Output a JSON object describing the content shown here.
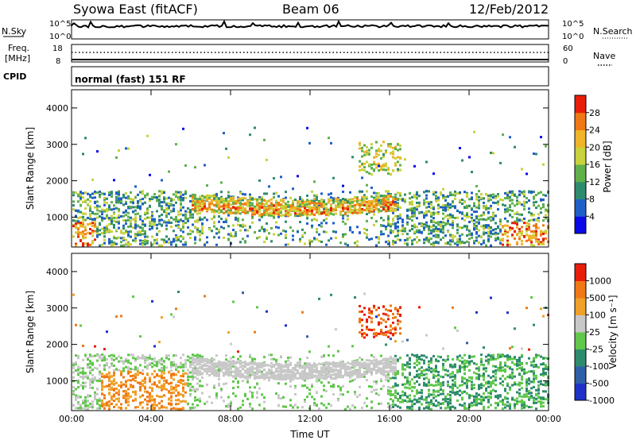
{
  "header": {
    "station": "Syowa East (fitACF)",
    "beam": "Beam 06",
    "date": "12/Feb/2012"
  },
  "top_panels": {
    "nsky_label": "N.Sky",
    "nsearch_label": "N.Search",
    "nsky_ticks": [
      "10^5",
      "10^0"
    ],
    "nsearch_ticks": [
      "10^5",
      "10^0"
    ],
    "freq_label_1": "Freq.",
    "freq_label_2": "[MHz]",
    "freq_ticks": [
      "18",
      "8"
    ],
    "nave_label": "Nave",
    "nave_ticks": [
      "60",
      "0"
    ],
    "cpid_label": "CPID",
    "cpid_text": "normal (fast) 151 RF"
  },
  "chart_data": [
    {
      "type": "heatmap",
      "quantity": "Power",
      "ylabel": "Slant Range [km]",
      "xlabel": "",
      "ylim": [
        180,
        4500
      ],
      "yticks": [
        "1000",
        "2000",
        "3000",
        "4000"
      ],
      "xticks": [
        "00:00",
        "04:00",
        "08:00",
        "12:00",
        "16:00",
        "20:00",
        "00:00"
      ],
      "colorbar_label": "Power [dB]",
      "colorbar_ticks": [
        "28",
        "24",
        "20",
        "16",
        "12",
        "8",
        "4"
      ],
      "colors": [
        "#0a0ae8",
        "#1f5fc8",
        "#2e8b6e",
        "#5fb04a",
        "#c8d23c",
        "#f0b428",
        "#f07814",
        "#e81e0a"
      ]
    },
    {
      "type": "heatmap",
      "quantity": "Velocity",
      "ylabel": "Slant Range [km]",
      "xlabel": "Time UT",
      "ylim": [
        180,
        4500
      ],
      "yticks": [
        "1000",
        "2000",
        "3000",
        "4000"
      ],
      "xticks": [
        "00:00",
        "04:00",
        "08:00",
        "12:00",
        "16:00",
        "20:00",
        "00:00"
      ],
      "colorbar_label": "Velocity [m s⁻¹]",
      "colorbar_ticks": [
        "1000",
        "500",
        "100",
        "25",
        "-25",
        "-100",
        "-500",
        "-1000"
      ],
      "colors": [
        "#1e32c8",
        "#2e5fa8",
        "#2e8b6e",
        "#5fc84a",
        "#c8c8c8",
        "#f0a028",
        "#f07814",
        "#e81e0a"
      ]
    }
  ]
}
